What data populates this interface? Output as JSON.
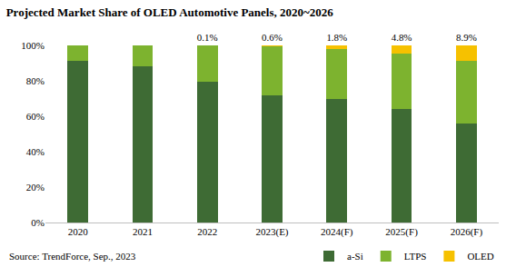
{
  "chart_data": {
    "type": "bar",
    "title": "Projected Market Share of OLED Automotive Panels, 2020~2026",
    "source": "Source: TrendForce, Sep., 2023",
    "categories": [
      "2020",
      "2021",
      "2022",
      "2023(E)",
      "2024(F)",
      "2025(F)",
      "2026(F)"
    ],
    "stacked": true,
    "grid": false,
    "legend": "bottom right",
    "ylim": [
      0,
      100
    ],
    "yticks": [
      {
        "value": 0,
        "label": "0%"
      },
      {
        "value": 20,
        "label": "20%"
      },
      {
        "value": 40,
        "label": "40%"
      },
      {
        "value": 60,
        "label": "60%"
      },
      {
        "value": 80,
        "label": "80%"
      },
      {
        "value": 100,
        "label": "100%"
      }
    ],
    "series": [
      {
        "name": "a-Si",
        "color": "#3e6b34",
        "values": [
          91.5,
          88,
          79.5,
          72,
          70,
          64,
          56
        ]
      },
      {
        "name": "LTPS",
        "color": "#7db32f",
        "values": [
          8.5,
          12,
          20.4,
          27.4,
          28.2,
          31.2,
          35.1
        ]
      },
      {
        "name": "OLED",
        "color": "#f6c100",
        "values": [
          null,
          null,
          0.1,
          0.6,
          1.8,
          4.8,
          8.9
        ],
        "data_labels": true,
        "value_labels": [
          null,
          null,
          "0.1%",
          "0.6%",
          "1.8%",
          "4.8%",
          "8.9%"
        ]
      }
    ]
  }
}
